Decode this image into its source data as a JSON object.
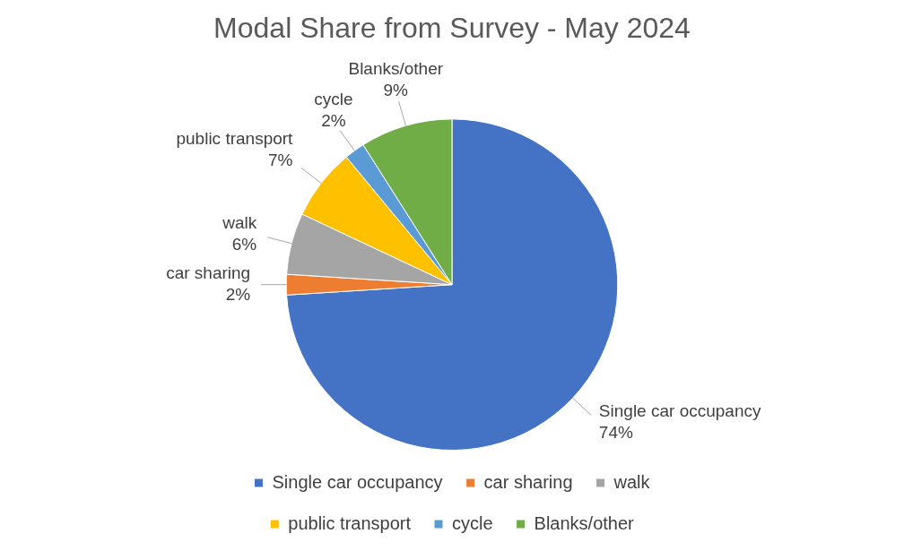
{
  "chart_data": {
    "type": "pie",
    "title": "Modal Share from Survey - May 2024",
    "categories": [
      "Single car occupancy",
      "car sharing",
      "walk",
      "public transport",
      "cycle",
      "Blanks/other"
    ],
    "values": [
      74,
      2,
      6,
      7,
      2,
      9
    ],
    "colors": [
      "#4472c4",
      "#ed7d31",
      "#a5a5a5",
      "#ffc000",
      "#5b9bd5",
      "#70ad47"
    ],
    "value_labels": [
      "74%",
      "2%",
      "6%",
      "7%",
      "2%",
      "9%"
    ],
    "legend": "bottom"
  }
}
